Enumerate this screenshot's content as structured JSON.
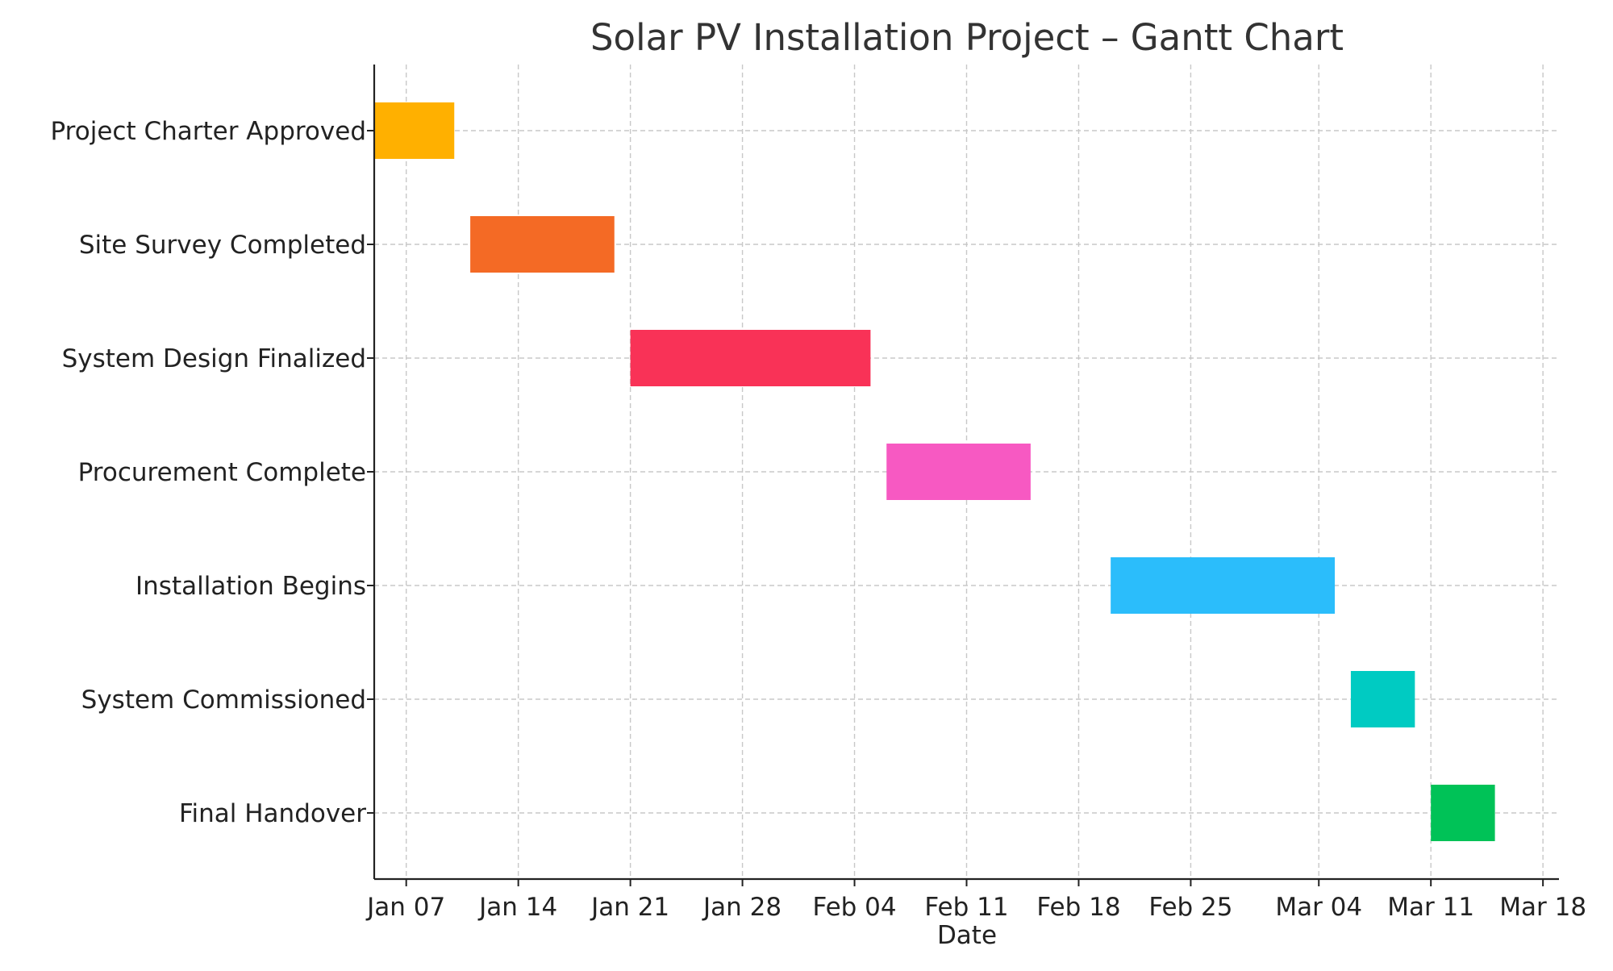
{
  "chart_data": {
    "type": "gantt",
    "title": "Solar PV Installation Project – Gantt Chart",
    "xlabel": "Date",
    "ylabel": "",
    "x_axis_type": "date",
    "xlim": [
      "2024-01-05",
      "2024-03-19"
    ],
    "x_ticks": [
      {
        "date": "2024-01-07",
        "label": "Jan 07"
      },
      {
        "date": "2024-01-14",
        "label": "Jan 14"
      },
      {
        "date": "2024-01-21",
        "label": "Jan 21"
      },
      {
        "date": "2024-01-28",
        "label": "Jan 28"
      },
      {
        "date": "2024-02-04",
        "label": "Feb 04"
      },
      {
        "date": "2024-02-11",
        "label": "Feb 11"
      },
      {
        "date": "2024-02-18",
        "label": "Feb 18"
      },
      {
        "date": "2024-02-25",
        "label": "Feb 25"
      },
      {
        "date": "2024-03-04",
        "label": "Mar 04"
      },
      {
        "date": "2024-03-11",
        "label": "Mar 11"
      },
      {
        "date": "2024-03-18",
        "label": "Mar 18"
      }
    ],
    "grid": true,
    "tasks": [
      {
        "name": "Project Charter Approved",
        "start": "2024-01-05",
        "end": "2024-01-10",
        "color": "#FFB000"
      },
      {
        "name": "Site Survey Completed",
        "start": "2024-01-11",
        "end": "2024-01-20",
        "color": "#F46A25"
      },
      {
        "name": "System Design Finalized",
        "start": "2024-01-21",
        "end": "2024-02-05",
        "color": "#F93257"
      },
      {
        "name": "Procurement Complete",
        "start": "2024-02-06",
        "end": "2024-02-15",
        "color": "#F759C2"
      },
      {
        "name": "Installation Begins",
        "start": "2024-02-20",
        "end": "2024-03-05",
        "color": "#2BBDFB"
      },
      {
        "name": "System Commissioned",
        "start": "2024-03-06",
        "end": "2024-03-10",
        "color": "#00CBC2"
      },
      {
        "name": "Final Handover",
        "start": "2024-03-11",
        "end": "2024-03-15",
        "color": "#00C257"
      }
    ]
  }
}
